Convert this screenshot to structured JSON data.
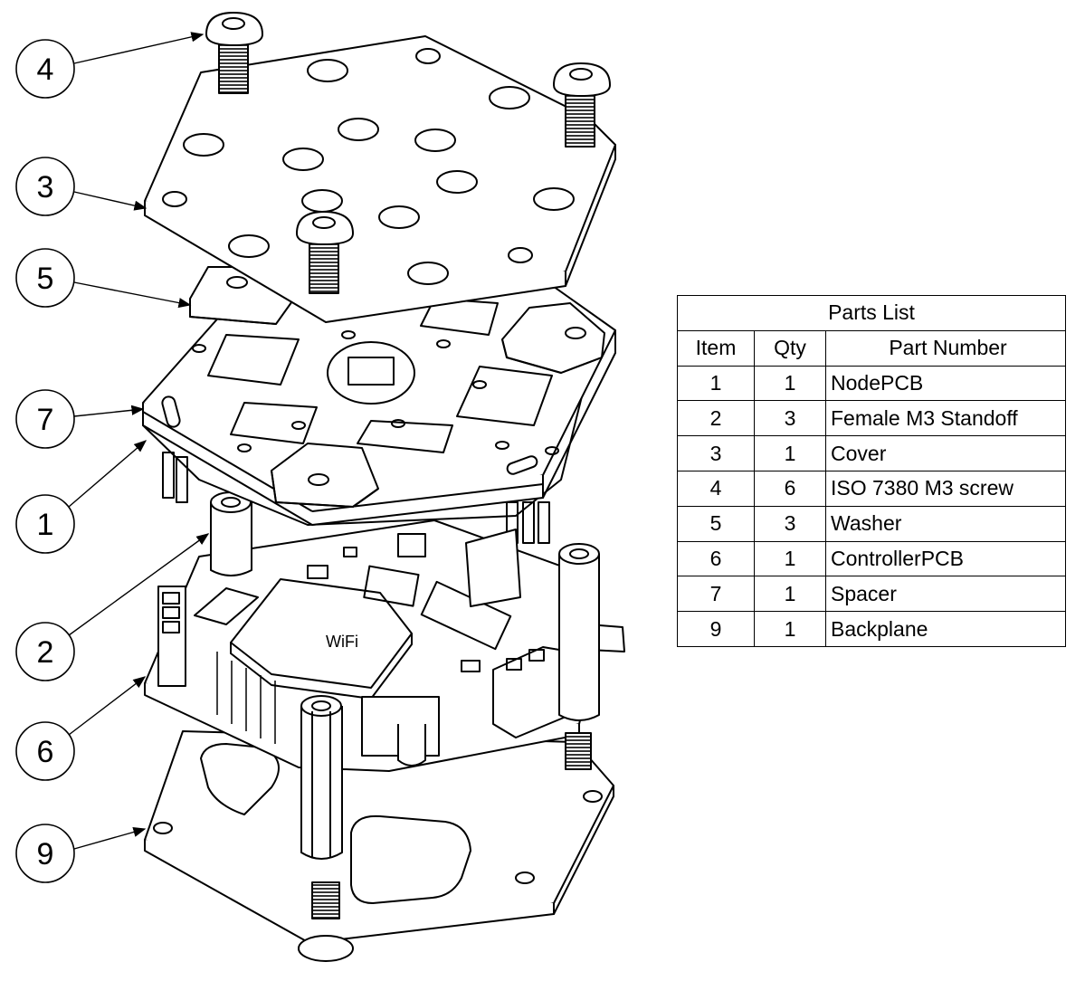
{
  "balloons": [
    "4",
    "3",
    "5",
    "7",
    "1",
    "2",
    "6",
    "9"
  ],
  "board_markings": {
    "wifi": "WiFi"
  },
  "parts_list": {
    "title": "Parts List",
    "headers": {
      "item": "Item",
      "qty": "Qty",
      "part_number": "Part Number"
    },
    "rows": [
      {
        "item": "1",
        "qty": "1",
        "part": "NodePCB"
      },
      {
        "item": "2",
        "qty": "3",
        "part": "Female M3 Standoff"
      },
      {
        "item": "3",
        "qty": "1",
        "part": "Cover"
      },
      {
        "item": "4",
        "qty": "6",
        "part": "ISO 7380 M3 screw"
      },
      {
        "item": "5",
        "qty": "3",
        "part": "Washer"
      },
      {
        "item": "6",
        "qty": "1",
        "part": "ControllerPCB"
      },
      {
        "item": "7",
        "qty": "1",
        "part": "Spacer"
      },
      {
        "item": "9",
        "qty": "1",
        "part": "Backplane"
      }
    ]
  }
}
